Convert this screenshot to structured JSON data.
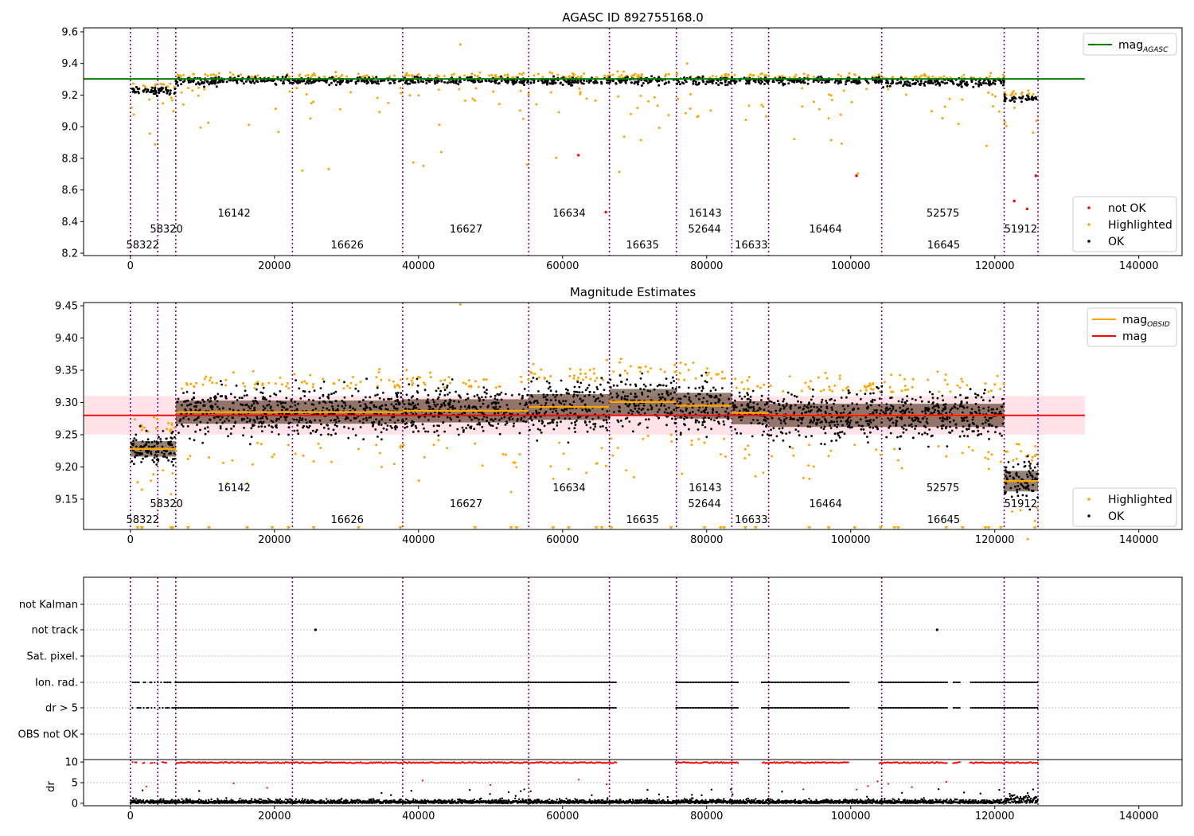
{
  "chart_data": [
    {
      "type": "scatter",
      "title": "AGASC ID 892755168.0",
      "xlabel": "",
      "ylabel": "",
      "xlim": [
        -6500,
        146000
      ],
      "ylim": [
        8.185,
        9.625
      ],
      "xticks": [
        0,
        20000,
        40000,
        60000,
        80000,
        100000,
        120000,
        140000
      ],
      "xtick_labels": [
        "0",
        "20000",
        "40000",
        "60000",
        "80000",
        "100000",
        "120000",
        "140000"
      ],
      "yticks": [
        8.2,
        8.4,
        8.6,
        8.8,
        9.0,
        9.2,
        9.4,
        9.6
      ],
      "ytick_labels": [
        "8.2",
        "8.4",
        "8.6",
        "8.8",
        "9.0",
        "9.2",
        "9.4",
        "9.6"
      ],
      "obs_boundaries": [
        0,
        3800,
        6300,
        22500,
        37800,
        55300,
        66500,
        75800,
        83500,
        88600,
        104300,
        121300,
        126000
      ],
      "obsid_labels": [
        {
          "text": "58322",
          "x": 1700,
          "level": 0
        },
        {
          "text": "58320",
          "x": 5000,
          "level": 1
        },
        {
          "text": "16142",
          "x": 14400,
          "level": 2
        },
        {
          "text": "16626",
          "x": 30100,
          "level": 0
        },
        {
          "text": "16627",
          "x": 46600,
          "level": 1
        },
        {
          "text": "16634",
          "x": 60900,
          "level": 2
        },
        {
          "text": "16635",
          "x": 71100,
          "level": 0
        },
        {
          "text": "52644",
          "x": 79700,
          "level": 1
        },
        {
          "text": "16143",
          "x": 79800,
          "level": 2
        },
        {
          "text": "16633",
          "x": 86200,
          "level": 0
        },
        {
          "text": "16464",
          "x": 96500,
          "level": 1
        },
        {
          "text": "52575",
          "x": 112800,
          "level": 2
        },
        {
          "text": "16645",
          "x": 112900,
          "level": 0
        },
        {
          "text": "51912",
          "x": 123600,
          "level": 1
        }
      ],
      "segments": [
        {
          "x0": 0,
          "x1": 3800,
          "mean": 9.228,
          "spread": 0.012
        },
        {
          "x0": 3800,
          "x1": 6300,
          "mean": 9.228,
          "spread": 0.012
        },
        {
          "x0": 6300,
          "x1": 22500,
          "mean": 9.285,
          "spread": 0.018
        },
        {
          "x0": 22500,
          "x1": 37800,
          "mean": 9.285,
          "spread": 0.018
        },
        {
          "x0": 37800,
          "x1": 55300,
          "mean": 9.287,
          "spread": 0.018
        },
        {
          "x0": 55300,
          "x1": 66500,
          "mean": 9.293,
          "spread": 0.02
        },
        {
          "x0": 66500,
          "x1": 75800,
          "mean": 9.301,
          "spread": 0.02
        },
        {
          "x0": 75800,
          "x1": 83500,
          "mean": 9.295,
          "spread": 0.02
        },
        {
          "x0": 83500,
          "x1": 88600,
          "mean": 9.284,
          "spread": 0.018
        },
        {
          "x0": 88600,
          "x1": 104300,
          "mean": 9.28,
          "spread": 0.018
        },
        {
          "x0": 104300,
          "x1": 121300,
          "mean": 9.28,
          "spread": 0.018
        },
        {
          "x0": 121300,
          "x1": 126000,
          "mean": 9.178,
          "spread": 0.016
        }
      ],
      "mag_agasc": 9.302,
      "not_ok_points": [
        [
          62200,
          8.82
        ],
        [
          66000,
          8.46
        ],
        [
          100800,
          8.69
        ],
        [
          122700,
          8.53
        ],
        [
          124500,
          8.48
        ],
        [
          125700,
          8.69
        ]
      ],
      "legend_top": {
        "position": "upper right",
        "entries": [
          {
            "label": "mag",
            "sub": "AGASC",
            "color": "#008000",
            "marker": "line"
          }
        ]
      },
      "legend_bottom": {
        "position": "lower right",
        "entries": [
          {
            "label": "not OK",
            "color": "#ff0000",
            "marker": "dot"
          },
          {
            "label": "Highlighted",
            "color": "#ffa500",
            "marker": "dot"
          },
          {
            "label": "OK",
            "color": "#000000",
            "marker": "dot"
          }
        ]
      }
    },
    {
      "type": "scatter",
      "title": "Magnitude Estimates",
      "xlabel": "",
      "ylabel": "",
      "xlim": [
        -6500,
        146000
      ],
      "ylim": [
        9.103,
        9.455
      ],
      "xticks": [
        0,
        20000,
        40000,
        60000,
        80000,
        100000,
        120000,
        140000
      ],
      "xtick_labels": [
        "0",
        "20000",
        "40000",
        "60000",
        "80000",
        "100000",
        "120000",
        "140000"
      ],
      "yticks": [
        9.15,
        9.2,
        9.25,
        9.3,
        9.35,
        9.4,
        9.45
      ],
      "ytick_labels": [
        "9.15",
        "9.20",
        "9.25",
        "9.30",
        "9.35",
        "9.40",
        "9.45"
      ],
      "mag": 9.28,
      "mag_band": [
        9.25,
        9.31
      ],
      "legend_top": {
        "position": "upper right",
        "entries": [
          {
            "label": "mag",
            "sub": "OBSID",
            "color": "#ffa500",
            "marker": "line"
          },
          {
            "label": "mag",
            "sub": "",
            "color": "#ff0000",
            "marker": "line"
          }
        ]
      },
      "legend_bottom": {
        "position": "lower right",
        "entries": [
          {
            "label": "Highlighted",
            "color": "#ffa500",
            "marker": "dot"
          },
          {
            "label": "OK",
            "color": "#000000",
            "marker": "dot"
          }
        ]
      }
    },
    {
      "type": "scatter",
      "title": "",
      "xlabel": "",
      "ylabel": "",
      "xlim": [
        -6500,
        146000
      ],
      "flag_rows": [
        "not Kalman",
        "not track",
        "Sat. pixel.",
        "Ion. rad.",
        "dr > 5",
        "OBS not OK"
      ],
      "not_track_points": [
        25700,
        112000
      ],
      "flag_gaps": [
        [
          67500,
          75600
        ],
        [
          84500,
          87600
        ],
        [
          99800,
          103800
        ],
        [
          113500,
          114200
        ],
        [
          115200,
          116500
        ]
      ]
    },
    {
      "type": "scatter",
      "title": "",
      "xlabel": "",
      "ylabel": "dr",
      "xlim": [
        -6500,
        146000
      ],
      "ylim": [
        -0.6,
        10.6
      ],
      "yticks": [
        0,
        5,
        10
      ],
      "ytick_labels": [
        "0",
        "5",
        "10"
      ],
      "xticks": [
        0,
        20000,
        40000,
        60000,
        80000,
        100000,
        120000,
        140000
      ],
      "xtick_labels": [
        "0",
        "20000",
        "40000",
        "60000",
        "80000",
        "100000",
        "120000",
        "140000"
      ]
    }
  ],
  "colors": {
    "ok": "#000000",
    "highlighted": "#ffa500",
    "not_ok": "#ff0000",
    "agasc_line": "#008000",
    "obsid_mean": "#ffa500",
    "mag_line": "#ff0000",
    "mag_band": "#ffc0cb",
    "obs_boundary": "#800080",
    "grid": "#b0b0b0"
  }
}
